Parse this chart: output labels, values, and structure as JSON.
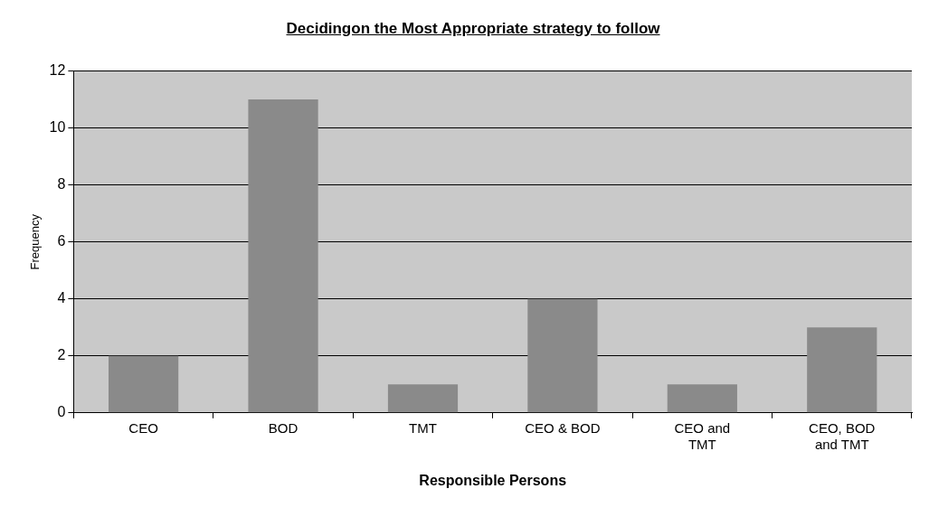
{
  "chart_data": {
    "type": "bar",
    "title": "Decidingon the Most Appropriate strategy to follow",
    "xlabel": "Responsible Persons",
    "ylabel": "Frequency",
    "categories": [
      "CEO",
      "BOD",
      "TMT",
      "CEO & BOD",
      "CEO and TMT",
      "CEO, BOD and TMT"
    ],
    "values": [
      2,
      11,
      1,
      4,
      1,
      3
    ],
    "color": "#8a8a8a",
    "ylim": [
      0,
      12
    ],
    "yticks": [
      0,
      2,
      4,
      6,
      8,
      10,
      12
    ],
    "grid": "y",
    "legend": false
  }
}
